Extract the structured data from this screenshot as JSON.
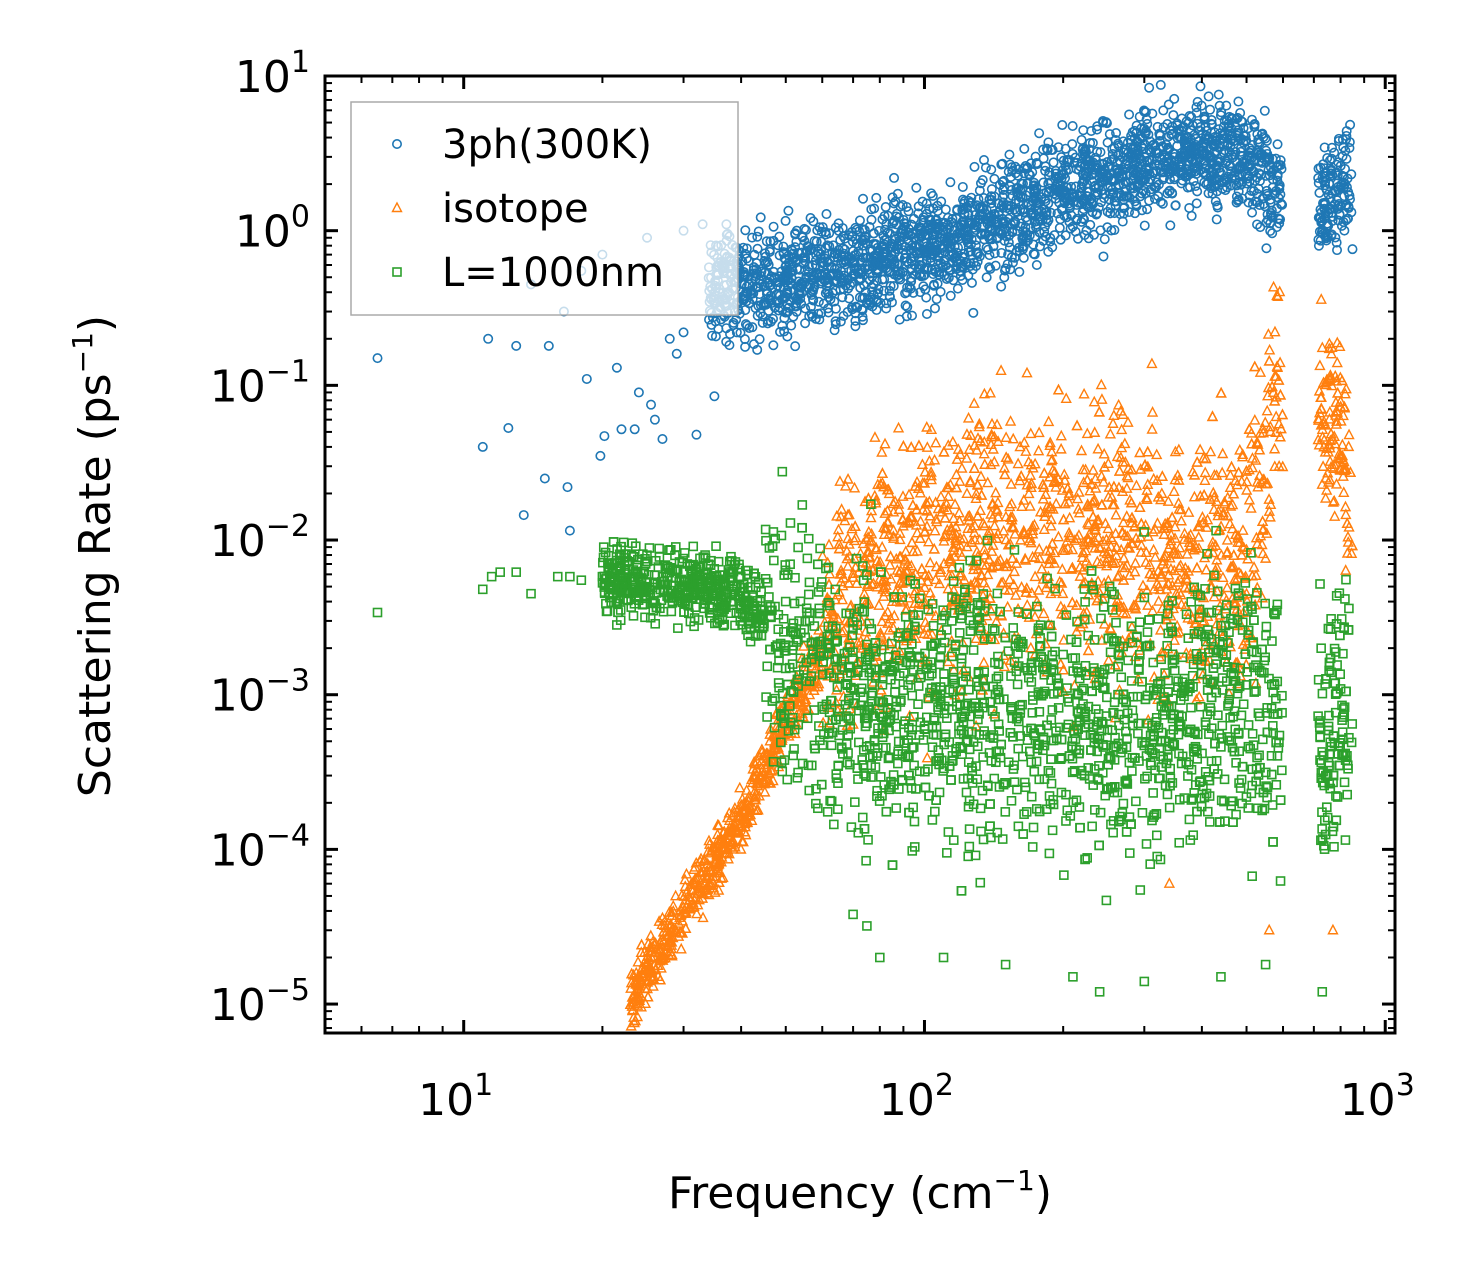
{
  "chart_data": {
    "type": "scatter",
    "xlabel": "Frequency (cm",
    "xlabel_sup": "−1",
    "xlabel_end": ")",
    "ylabel": "Scattering Rate (ps",
    "ylabel_sup": "−1",
    "ylabel_end": ")",
    "xscale": "log",
    "yscale": "log",
    "xlim": [
      5,
      1050
    ],
    "ylim": [
      6.5e-06,
      10
    ],
    "x_ticks": [
      {
        "value": 10,
        "base": "10",
        "exp": "1"
      },
      {
        "value": 100,
        "base": "10",
        "exp": "2"
      },
      {
        "value": 1000,
        "base": "10",
        "exp": "3"
      }
    ],
    "y_ticks": [
      {
        "value": 10,
        "base": "10",
        "exp": "1"
      },
      {
        "value": 1,
        "base": "10",
        "exp": "0"
      },
      {
        "value": 0.1,
        "base": "10",
        "exp": "−1"
      },
      {
        "value": 0.01,
        "base": "10",
        "exp": "−2"
      },
      {
        "value": 0.001,
        "base": "10",
        "exp": "−3"
      },
      {
        "value": 0.0001,
        "base": "10",
        "exp": "−4"
      },
      {
        "value": 1e-05,
        "base": "10",
        "exp": "−5"
      }
    ],
    "legend_position": "top-left",
    "series": [
      {
        "name": "3ph(300K)",
        "marker": "circle",
        "color": "#1f77b4",
        "points": [
          [
            6.5,
            0.15
          ],
          [
            11,
            0.04
          ],
          [
            11.3,
            0.2
          ],
          [
            12.5,
            0.053
          ],
          [
            13,
            0.18
          ],
          [
            13.5,
            0.0145
          ],
          [
            15,
            0.025
          ],
          [
            15.3,
            0.18
          ],
          [
            16.5,
            0.3
          ],
          [
            16.8,
            0.022
          ],
          [
            17,
            0.0115
          ],
          [
            18.5,
            0.11
          ],
          [
            19.8,
            0.035
          ],
          [
            20.2,
            0.047
          ],
          [
            21.5,
            0.13
          ],
          [
            22,
            0.052
          ],
          [
            23.5,
            0.052
          ],
          [
            24,
            0.09
          ],
          [
            25.5,
            0.075
          ],
          [
            26,
            0.06
          ],
          [
            27,
            0.045
          ],
          [
            28,
            0.2
          ],
          [
            29,
            0.16
          ],
          [
            30,
            0.22
          ],
          [
            32,
            0.048
          ],
          [
            35,
            0.085
          ],
          [
            36,
            0.32
          ],
          [
            14,
            0.45
          ],
          [
            18,
            0.55
          ],
          [
            20,
            0.7
          ],
          [
            25,
            0.9
          ],
          [
            30,
            1.0
          ],
          [
            33,
            1.1
          ]
        ],
        "trend": [
          [
            34,
            0.4
          ],
          [
            45,
            0.45
          ],
          [
            60,
            0.55
          ],
          [
            80,
            0.65
          ],
          [
            100,
            0.8
          ],
          [
            150,
            1.2
          ],
          [
            200,
            1.8
          ],
          [
            250,
            2.3
          ],
          [
            300,
            2.7
          ],
          [
            400,
            3.5
          ],
          [
            500,
            2.8
          ],
          [
            580,
            1.9
          ],
          [
            720,
            1.3
          ],
          [
            800,
            2.0
          ],
          [
            850,
            2.0
          ]
        ]
      },
      {
        "name": "isotope",
        "marker": "triangle",
        "color": "#ff7f0e",
        "points": [
          [
            340,
            6e-05
          ],
          [
            560,
            3e-05
          ],
          [
            770,
            3e-05
          ]
        ],
        "trend": [
          [
            23,
            1e-05
          ],
          [
            30,
            4e-05
          ],
          [
            40,
            0.00015
          ],
          [
            50,
            0.0007
          ],
          [
            60,
            0.002
          ],
          [
            70,
            0.005
          ],
          [
            90,
            0.008
          ],
          [
            120,
            0.009
          ],
          [
            160,
            0.01
          ],
          [
            200,
            0.012
          ],
          [
            250,
            0.011
          ],
          [
            300,
            0.009
          ],
          [
            400,
            0.006
          ],
          [
            500,
            0.007
          ],
          [
            580,
            0.08
          ],
          [
            720,
            0.08
          ],
          [
            800,
            0.05
          ],
          [
            850,
            0.01
          ]
        ]
      },
      {
        "name": "L=1000nm",
        "marker": "square",
        "color": "#2ca02c",
        "points": [
          [
            6.5,
            0.0034
          ],
          [
            11,
            0.0048
          ],
          [
            11.5,
            0.0058
          ],
          [
            12,
            0.0062
          ],
          [
            13,
            0.0062
          ],
          [
            14,
            0.0045
          ],
          [
            16,
            0.0058
          ],
          [
            17,
            0.0058
          ],
          [
            18,
            0.0055
          ],
          [
            20,
            0.0058
          ],
          [
            70,
            3.8e-05
          ],
          [
            75,
            3.2e-05
          ],
          [
            80,
            2e-05
          ],
          [
            110,
            2e-05
          ],
          [
            150,
            1.8e-05
          ],
          [
            210,
            1.5e-05
          ],
          [
            240,
            1.2e-05
          ],
          [
            300,
            1.4e-05
          ],
          [
            440,
            1.5e-05
          ],
          [
            550,
            1.8e-05
          ],
          [
            730,
            1.2e-05
          ]
        ],
        "trend": [
          [
            20,
            0.0055
          ],
          [
            30,
            0.0052
          ],
          [
            40,
            0.0045
          ],
          [
            50,
            0.0025
          ],
          [
            60,
            0.0012
          ],
          [
            80,
            0.0009
          ],
          [
            120,
            0.0008
          ],
          [
            200,
            0.0007
          ],
          [
            300,
            0.0007
          ],
          [
            400,
            0.0008
          ],
          [
            500,
            0.0009
          ],
          [
            580,
            0.0007
          ],
          [
            720,
            0.0006
          ],
          [
            800,
            0.0008
          ],
          [
            850,
            0.0008
          ]
        ]
      }
    ]
  }
}
